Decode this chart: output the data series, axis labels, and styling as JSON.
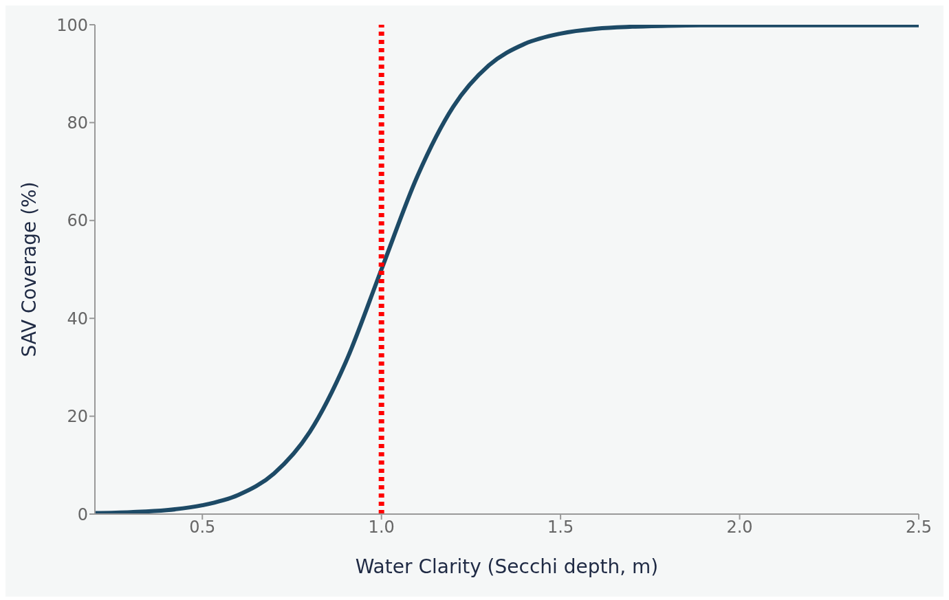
{
  "chart_data": {
    "type": "line",
    "xlabel": "Water Clarity (Secchi depth, m)",
    "ylabel": "SAV Coverage (%)",
    "x": [
      0.2,
      0.3,
      0.4,
      0.5,
      0.6,
      0.7,
      0.8,
      0.9,
      1.0,
      1.1,
      1.2,
      1.3,
      1.4,
      1.5,
      1.6,
      1.7,
      1.8,
      1.9,
      2.0,
      2.1,
      2.2,
      2.3,
      2.4,
      2.5
    ],
    "series": [
      {
        "color": "#1d4a66",
        "values": [
          0.2,
          0.4,
          0.8,
          1.8,
          3.9,
          8.3,
          16.8,
          31,
          50,
          69,
          83.2,
          91.7,
          96.1,
          98.2,
          99.2,
          99.6,
          99.8,
          99.9,
          99.9,
          99.9,
          99.9,
          99.9,
          99.9,
          99.9
        ]
      }
    ],
    "xlim": [
      0.2,
      2.5
    ],
    "xticks": [
      {
        "value": 0.5,
        "label": "0.5"
      },
      {
        "value": 1,
        "label": "1.0"
      },
      {
        "value": 1.5,
        "label": "1.5"
      },
      {
        "value": 2,
        "label": "2.0"
      },
      {
        "value": 2.5,
        "label": "2.5"
      }
    ],
    "ylim": [
      0,
      100
    ],
    "yticks": [
      0,
      20,
      40,
      60,
      80,
      100
    ],
    "ref_lines": [
      {
        "axis": "x",
        "value": 1.0,
        "color": "#ff0000",
        "line_style": "dotted"
      }
    ]
  }
}
